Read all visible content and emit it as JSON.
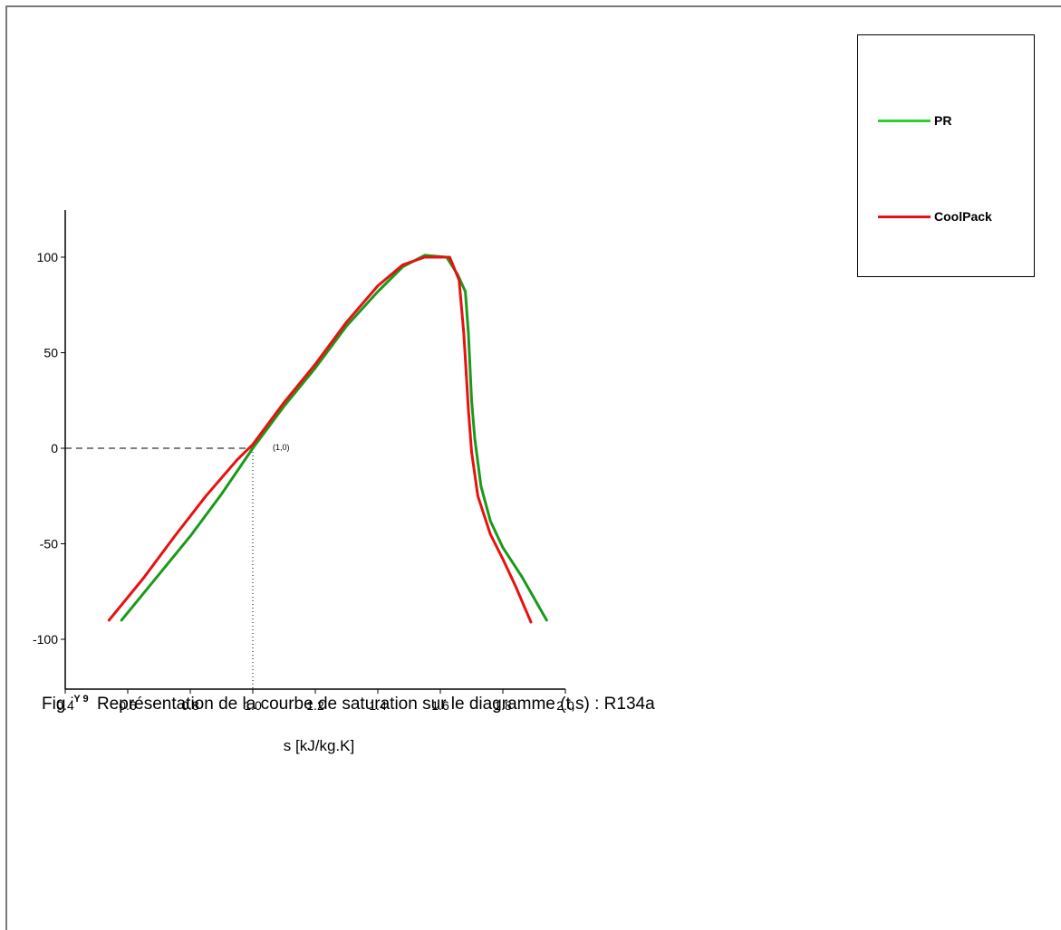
{
  "chart_data": {
    "type": "line",
    "xlabel": "s [kJ/kg.K]",
    "ylabel": "",
    "xlim": [
      0.4,
      2.0
    ],
    "ylim": [
      -125,
      125
    ],
    "xticks": [
      "0.4",
      "0.6",
      "0.8",
      "1.0",
      "1.2",
      "1.4",
      "1.6",
      "1.8",
      "2.0"
    ],
    "yticks": [
      "100",
      "50",
      "0",
      "-50",
      "-100"
    ],
    "xtick_values": [
      0.4,
      0.6,
      0.8,
      1.0,
      1.2,
      1.4,
      1.6,
      1.8,
      2.0
    ],
    "ytick_values": [
      100,
      50,
      0,
      -50,
      -100
    ],
    "grid": false,
    "legend_position": "top-right",
    "series": [
      {
        "name": "PR",
        "color": "#1a9a1a",
        "points": [
          [
            0.58,
            -90
          ],
          [
            0.7,
            -66
          ],
          [
            0.8,
            -46
          ],
          [
            0.9,
            -24
          ],
          [
            1.0,
            0
          ],
          [
            1.1,
            22
          ],
          [
            1.2,
            42
          ],
          [
            1.3,
            64
          ],
          [
            1.4,
            82
          ],
          [
            1.48,
            95
          ],
          [
            1.55,
            101
          ],
          [
            1.62,
            100
          ],
          [
            1.655,
            91
          ],
          [
            1.68,
            82
          ],
          [
            1.69,
            60
          ],
          [
            1.7,
            25
          ],
          [
            1.71,
            5
          ],
          [
            1.73,
            -20
          ],
          [
            1.76,
            -38
          ],
          [
            1.8,
            -52
          ],
          [
            1.86,
            -67
          ],
          [
            1.94,
            -90
          ]
        ]
      },
      {
        "name": "CoolPack",
        "color": "#e81010",
        "points": [
          [
            0.54,
            -90
          ],
          [
            0.65,
            -68
          ],
          [
            0.75,
            -46
          ],
          [
            0.85,
            -25
          ],
          [
            0.95,
            -6
          ],
          [
            1.0,
            2
          ],
          [
            1.1,
            24
          ],
          [
            1.2,
            44
          ],
          [
            1.3,
            66
          ],
          [
            1.4,
            85
          ],
          [
            1.48,
            96
          ],
          [
            1.55,
            100
          ],
          [
            1.63,
            100
          ],
          [
            1.66,
            88
          ],
          [
            1.675,
            60
          ],
          [
            1.69,
            20
          ],
          [
            1.7,
            -2
          ],
          [
            1.72,
            -25
          ],
          [
            1.76,
            -45
          ],
          [
            1.8,
            -58
          ],
          [
            1.84,
            -72
          ],
          [
            1.89,
            -91
          ]
        ]
      }
    ],
    "annotation": {
      "label": "(1,0)",
      "x": 1.0,
      "y": 0
    }
  },
  "caption": {
    "prefix": "Fig",
    "number": ":Y 9",
    "text": "Représentation de la courbe de saturation sur le diagramme (t,s) : R134a"
  }
}
